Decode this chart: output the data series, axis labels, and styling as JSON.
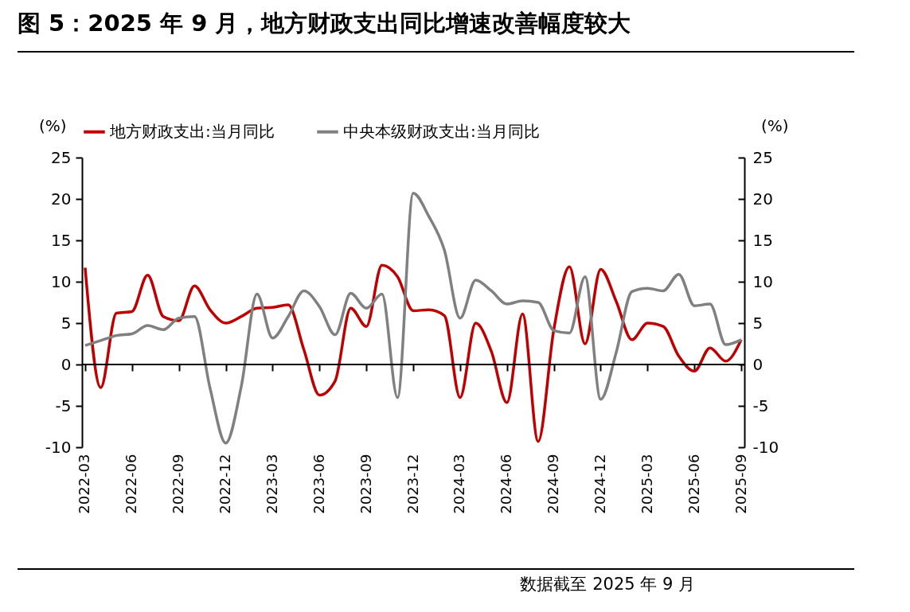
{
  "chart_data": {
    "type": "line",
    "title": "图 5：2025 年 9 月，地方财政支出同比增速改善幅度较大",
    "categories": [
      "2022-03",
      null,
      null,
      "2022-06",
      null,
      null,
      "2022-09",
      null,
      null,
      "2022-12",
      null,
      null,
      "2023-03",
      null,
      null,
      "2023-06",
      null,
      null,
      "2023-09",
      null,
      null,
      "2023-12",
      null,
      null,
      "2024-03",
      null,
      null,
      "2024-06",
      null,
      null,
      "2024-09",
      null,
      null,
      "2024-12",
      null,
      null,
      "2025-03",
      null,
      null,
      "2025-06",
      null,
      null,
      "2025-09"
    ],
    "series": [
      {
        "name": "地方财政支出:当月同比",
        "color": "#c00000",
        "values": [
          11.7,
          -2.8,
          6.2,
          6.4,
          10.8,
          5.8,
          5.3,
          9.5,
          6.6,
          5.0,
          5.8,
          6.8,
          6.9,
          7.2,
          1.8,
          -3.7,
          -2.0,
          6.8,
          4.6,
          12.0,
          10.6,
          6.5,
          6.6,
          5.9,
          -4.0,
          5.0,
          1.6,
          -4.6,
          6.1,
          -9.3,
          4.2,
          11.8,
          2.5,
          11.5,
          7.6,
          3.0,
          5.0,
          4.6,
          1.0,
          -0.8,
          2.0,
          0.4,
          3.0
        ]
      },
      {
        "name": "中央本级财政支出:当月同比",
        "color": "#808080",
        "axis": "y2",
        "values": [
          2.3,
          2.9,
          3.5,
          3.7,
          4.7,
          4.2,
          5.6,
          5.8,
          -2.9,
          -9.5,
          -2.6,
          8.5,
          3.2,
          5.8,
          8.9,
          7.0,
          3.6,
          8.6,
          6.8,
          8.5,
          -4.0,
          20.7,
          17.9,
          13.8,
          5.6,
          10.2,
          8.9,
          7.3,
          7.7,
          7.5,
          4.1,
          3.8,
          10.6,
          -4.2,
          1.5,
          8.8,
          9.2,
          8.9,
          10.9,
          7.1,
          7.3,
          2.4,
          3.0
        ]
      }
    ],
    "ylabel": "(%)",
    "y2label": "(%)",
    "ylim": [
      -10,
      25
    ],
    "yticks": [
      -10,
      -5,
      0,
      5,
      10,
      15,
      20,
      25
    ],
    "y2lim": [
      -10,
      25
    ],
    "y2ticks": [
      -10,
      -5,
      0,
      5,
      10,
      15,
      20,
      25
    ],
    "ref_lines": [
      {
        "axis": "y",
        "value": 0,
        "color": "#000000"
      }
    ],
    "legend": "top",
    "grid": false,
    "marker": "none",
    "line_style": "solid",
    "annotations": [
      "数据截至 2025 年 9 月"
    ]
  }
}
